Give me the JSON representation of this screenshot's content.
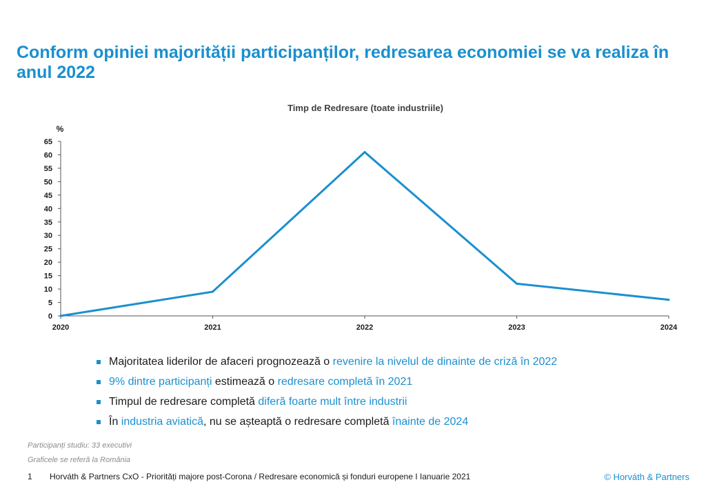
{
  "slide": {
    "title": "Conform opiniei majorității participanților, redresarea economiei se va realiza în anul 2022"
  },
  "chart_data": {
    "type": "line",
    "title": "Timp de Redresare (toate industriile)",
    "ylabel": "%",
    "xlabel": "",
    "x": [
      "2020",
      "2021",
      "2022",
      "2023",
      "2024"
    ],
    "series": [
      {
        "values": [
          0,
          9,
          61,
          12,
          6
        ]
      }
    ],
    "ylim": [
      0,
      65
    ],
    "yticks": [
      0,
      5,
      10,
      15,
      20,
      25,
      30,
      35,
      40,
      45,
      50,
      55,
      60,
      65
    ],
    "grid": false,
    "color": "#1a8fcf"
  },
  "bullets": [
    {
      "parts": [
        {
          "text": "Majoritatea liderilor de afaceri prognozează o ",
          "hl": false
        },
        {
          "text": "revenire la nivelul de dinainte de criză în 2022",
          "hl": true
        }
      ]
    },
    {
      "parts": [
        {
          "text": "9% dintre participanți",
          "hl": true
        },
        {
          "text": " estimează o ",
          "hl": false
        },
        {
          "text": "redresare completă în 2021",
          "hl": true
        }
      ]
    },
    {
      "parts": [
        {
          "text": "Timpul de redresare completă ",
          "hl": false
        },
        {
          "text": "diferă foarte mult între industrii",
          "hl": true
        }
      ]
    },
    {
      "parts": [
        {
          "text": "În ",
          "hl": false
        },
        {
          "text": "industria aviatică",
          "hl": true
        },
        {
          "text": ", nu se așteaptă o redresare completă ",
          "hl": false
        },
        {
          "text": "înainte de 2024",
          "hl": true
        }
      ]
    }
  ],
  "notes": {
    "participants": "Participanți studiu: 33 executivi",
    "scope": "Graficele se referă la România"
  },
  "footer": {
    "page_number": "1",
    "text": "Horváth & Partners CxO - Priorități majore post-Corona / Redresare economică și fonduri europene  I Ianuarie 2021",
    "copyright": "© Horváth & Partners"
  }
}
